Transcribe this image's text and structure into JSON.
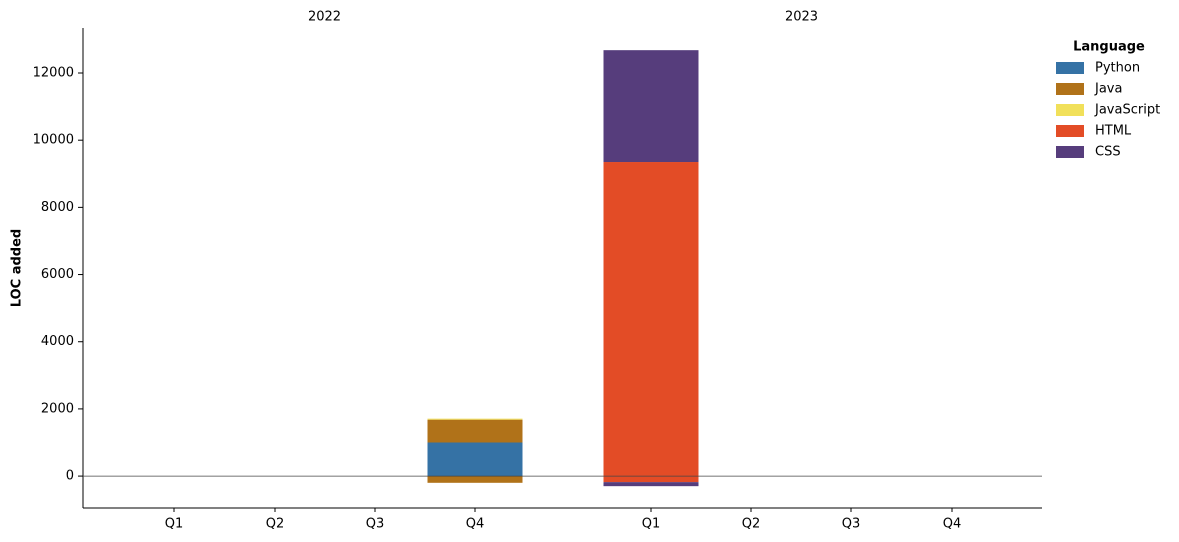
{
  "chart_data": {
    "type": "stacked-bar",
    "y_label": "LOC added",
    "groups": [
      {
        "name": "2022",
        "categories": [
          "Q1",
          "Q2",
          "Q3",
          "Q4"
        ]
      },
      {
        "name": "2023",
        "categories": [
          "Q1",
          "Q2",
          "Q3",
          "Q4"
        ]
      }
    ],
    "legend_title": "Language",
    "legend": "upper right",
    "series": [
      {
        "name": "Python",
        "color": "#3572a5",
        "values": [
          0,
          0,
          0,
          1000,
          0,
          0,
          0,
          0
        ],
        "removed": [
          0,
          0,
          0,
          0,
          0,
          0,
          0,
          0
        ]
      },
      {
        "name": "Java",
        "color": "#b07219",
        "values": [
          0,
          0,
          0,
          680,
          0,
          0,
          0,
          0
        ],
        "removed": [
          0,
          0,
          0,
          -200,
          0,
          0,
          0,
          0
        ]
      },
      {
        "name": "JavaScript",
        "color": "#f1e05a",
        "values": [
          0,
          0,
          0,
          30,
          0,
          0,
          0,
          0
        ],
        "removed": [
          0,
          0,
          0,
          0,
          0,
          0,
          0,
          0
        ]
      },
      {
        "name": "HTML",
        "color": "#e34c26",
        "values": [
          0,
          0,
          0,
          0,
          9350,
          0,
          0,
          0
        ],
        "removed": [
          0,
          0,
          0,
          0,
          -180,
          0,
          0,
          0
        ]
      },
      {
        "name": "CSS",
        "color": "#563d7c",
        "values": [
          0,
          0,
          0,
          0,
          3330,
          0,
          0,
          0
        ],
        "removed": [
          0,
          0,
          0,
          0,
          -120,
          0,
          0,
          0
        ]
      }
    ],
    "ylim": [
      -950,
      13340
    ],
    "yticks": [
      0,
      2000,
      4000,
      6000,
      8000,
      10000,
      12000
    ]
  }
}
